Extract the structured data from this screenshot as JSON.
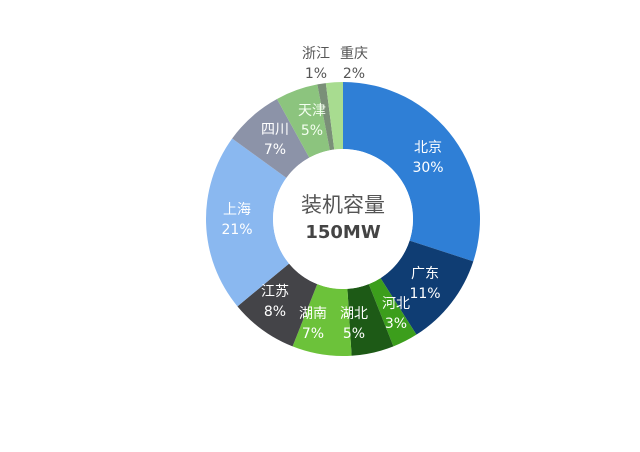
{
  "chart_data": {
    "type": "pie",
    "donut": true,
    "center_title": "装机容量",
    "center_value": "150MW",
    "slices": [
      {
        "label": "北京",
        "value": 30,
        "display": "30%",
        "color": "#2f7fd6",
        "text_color": "#ffffff"
      },
      {
        "label": "广东",
        "value": 11,
        "display": "11%",
        "color": "#0f3d73",
        "text_color": "#ffffff"
      },
      {
        "label": "河北",
        "value": 3,
        "display": "3%",
        "color": "#3c9e1c",
        "text_color": "#ffffff"
      },
      {
        "label": "湖北",
        "value": 5,
        "display": "5%",
        "color": "#1d5a16",
        "text_color": "#ffffff"
      },
      {
        "label": "湖南",
        "value": 7,
        "display": "7%",
        "color": "#6cc23a",
        "text_color": "#ffffff"
      },
      {
        "label": "江苏",
        "value": 8,
        "display": "8%",
        "color": "#444448",
        "text_color": "#ffffff"
      },
      {
        "label": "上海",
        "value": 21,
        "display": "21%",
        "color": "#8ab8f0",
        "text_color": "#ffffff"
      },
      {
        "label": "四川",
        "value": 7,
        "display": "7%",
        "color": "#8c93a8",
        "text_color": "#ffffff"
      },
      {
        "label": "天津",
        "value": 5,
        "display": "5%",
        "color": "#8cc47e",
        "text_color": "#f4fff0"
      },
      {
        "label": "浙江",
        "value": 1,
        "display": "1%",
        "color": "#7a8f78",
        "text_color": "#555555"
      },
      {
        "label": "重庆",
        "value": 2,
        "display": "2%",
        "color": "#a8dc90",
        "text_color": "#555555"
      }
    ]
  }
}
